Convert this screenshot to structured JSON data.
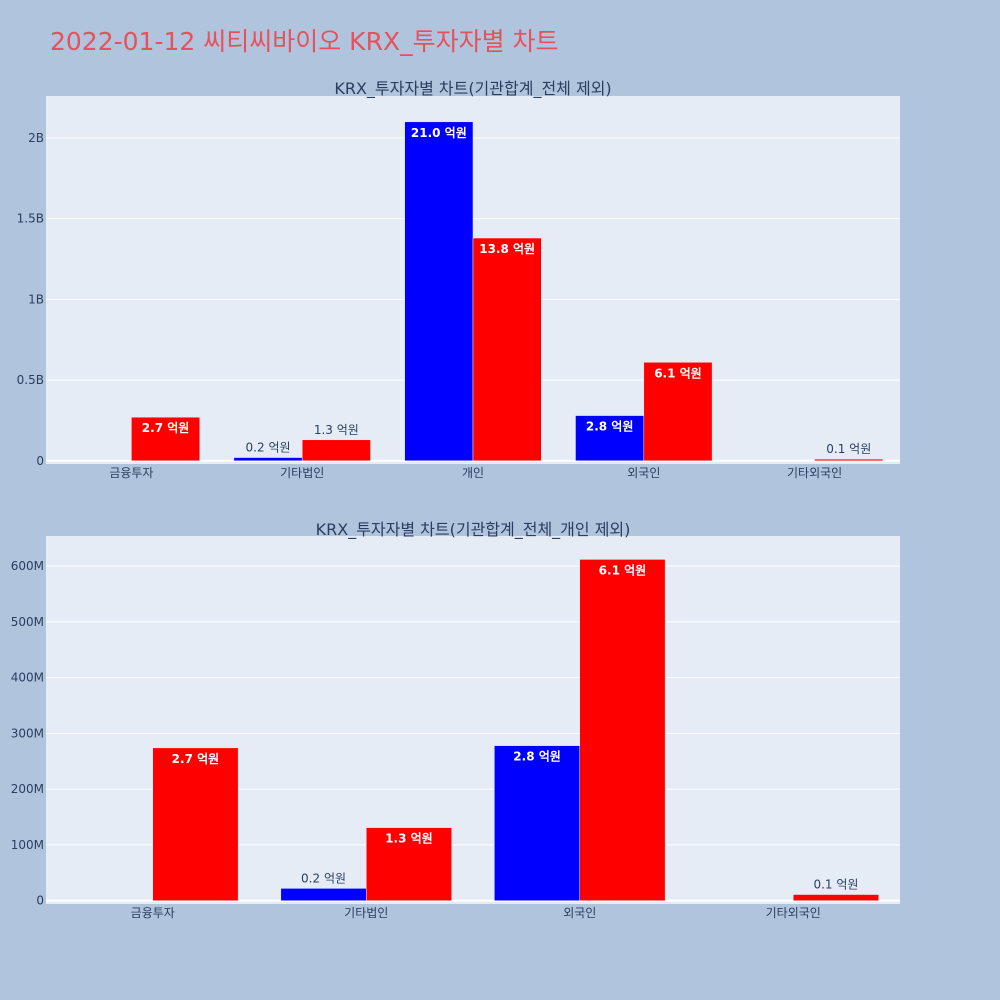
{
  "page": {
    "title": "2022-01-12 씨티씨바이오 KRX_투자자별 차트"
  },
  "colors": {
    "background": "#b0c4de",
    "plot_bg": "#e5ecf6",
    "series_a": "#0000ff",
    "series_b": "#ff0000",
    "title": "#e8505b"
  },
  "chart_data": [
    {
      "type": "bar",
      "title": "KRX_투자자별 차트(기관합계_전체 제외)",
      "categories": [
        "금융투자",
        "기타법인",
        "개인",
        "외국인",
        "기타외국인"
      ],
      "ylim": [
        -20000000,
        2260000000
      ],
      "yticks": [
        0,
        500000000,
        1000000000,
        1500000000,
        2000000000
      ],
      "ytick_labels": [
        "0",
        "0.5B",
        "1B",
        "1.5B",
        "2B"
      ],
      "grid": true,
      "series": [
        {
          "color": "#0000ff",
          "values": [
            0,
            20000000,
            2100000000,
            280000000,
            0
          ],
          "labels": [
            "",
            "0.2 억원",
            "21.0 억원",
            "2.8 억원",
            ""
          ]
        },
        {
          "color": "#ff0000",
          "values": [
            270000000,
            130000000,
            1380000000,
            610000000,
            10000000
          ],
          "labels": [
            "2.7 억원",
            "1.3 억원",
            "13.8 억원",
            "6.1 억원",
            "0.1 억원"
          ]
        }
      ]
    },
    {
      "type": "bar",
      "title": "KRX_투자자별 차트(기관합계_전체_개인 제외)",
      "categories": [
        "금융투자",
        "기타법인",
        "외국인",
        "기타외국인"
      ],
      "ylim": [
        -6000000,
        654000000
      ],
      "yticks": [
        0,
        100000000,
        200000000,
        300000000,
        400000000,
        500000000,
        600000000
      ],
      "ytick_labels": [
        "0",
        "100M",
        "200M",
        "300M",
        "400M",
        "500M",
        "600M"
      ],
      "grid": true,
      "series": [
        {
          "color": "#0000ff",
          "values": [
            0,
            22000000,
            278000000,
            0
          ],
          "labels": [
            "",
            "0.2 억원",
            "2.8 억원",
            ""
          ]
        },
        {
          "color": "#ff0000",
          "values": [
            274000000,
            131000000,
            612000000,
            11000000
          ],
          "labels": [
            "2.7 억원",
            "1.3 억원",
            "6.1 억원",
            "0.1 억원"
          ]
        }
      ]
    }
  ]
}
